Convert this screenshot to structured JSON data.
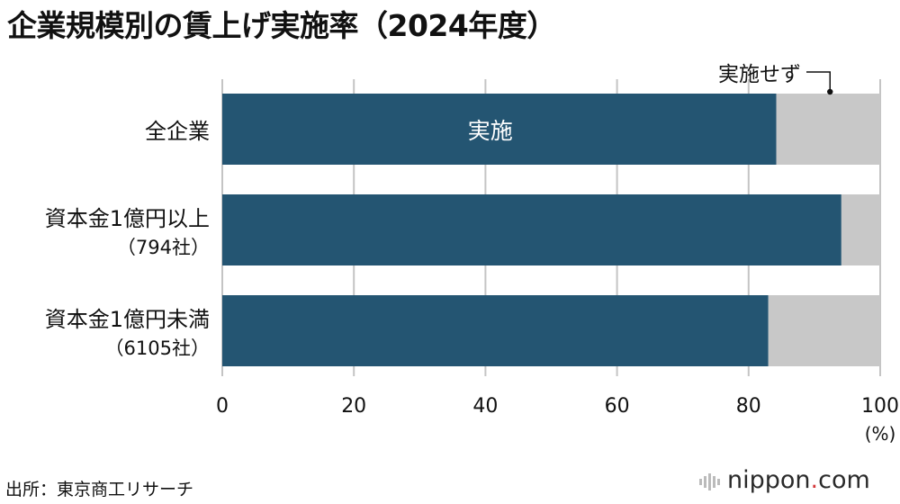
{
  "title": "企業規模別の賃上げ実施率（2024年度）",
  "source": "出所：東京商工リサーチ",
  "brand": {
    "name": "nippon",
    "dot": ".",
    "tld": "com"
  },
  "colors": {
    "implemented": "#245572",
    "not_implemented": "#c8c8c8",
    "grid": "#c4c4c4"
  },
  "chart_data": {
    "type": "bar",
    "orientation": "horizontal",
    "stacked": true,
    "title": "企業規模別の賃上げ実施率（2024年度）",
    "categories": [
      {
        "name": "全企業",
        "sub": ""
      },
      {
        "name": "資本金1億円以上",
        "sub": "（794社）"
      },
      {
        "name": "資本金1億円未満",
        "sub": "（6105社）"
      }
    ],
    "series": [
      {
        "name": "実施",
        "values": [
          84.2,
          94.1,
          83.0
        ]
      },
      {
        "name": "実施せず",
        "values": [
          15.8,
          5.9,
          17.0
        ]
      }
    ],
    "xlim": [
      0,
      100
    ],
    "xticks": [
      0,
      20,
      40,
      60,
      80,
      100
    ],
    "xunit": "(%)",
    "grid": true,
    "legend": "inline labels"
  }
}
